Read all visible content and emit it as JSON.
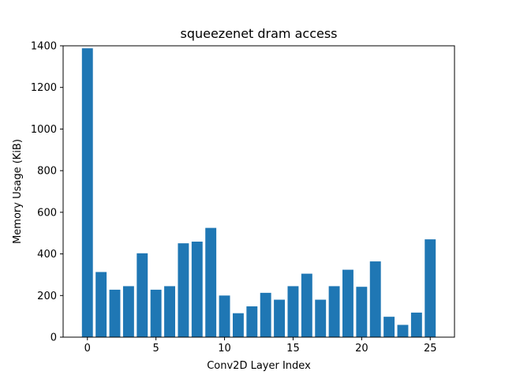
{
  "chart_data": {
    "type": "bar",
    "title": "squeezenet dram access",
    "xlabel": "Conv2D Layer Index",
    "ylabel": "Memory Usage (KiB)",
    "x": [
      0,
      1,
      2,
      3,
      4,
      5,
      6,
      7,
      8,
      9,
      10,
      11,
      12,
      13,
      14,
      15,
      16,
      17,
      18,
      19,
      20,
      21,
      22,
      23,
      24,
      25
    ],
    "values": [
      1388,
      313,
      228,
      245,
      403,
      228,
      245,
      451,
      459,
      525,
      200,
      115,
      148,
      213,
      180,
      245,
      305,
      180,
      245,
      324,
      242,
      364,
      98,
      59,
      118,
      470
    ],
    "xlim": [
      -1.77,
      26.77
    ],
    "ylim": [
      0,
      1400
    ],
    "xticks": [
      0,
      5,
      10,
      15,
      20,
      25
    ],
    "yticks": [
      0,
      200,
      400,
      600,
      800,
      1000,
      1200,
      1400
    ],
    "bar_color": "#1f77b4",
    "grid": false,
    "legend": false
  }
}
